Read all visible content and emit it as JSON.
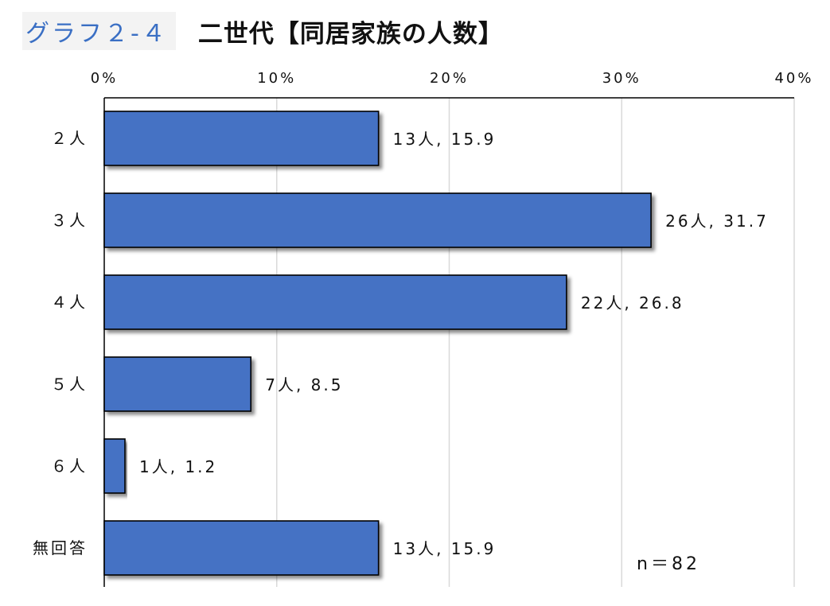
{
  "header": {
    "graph_number": "グラフ２-４",
    "title": "二世代【同居家族の人数】"
  },
  "chart_data": {
    "type": "bar",
    "orientation": "horizontal",
    "categories": [
      "２人",
      "３人",
      "４人",
      "５人",
      "６人",
      "無回答"
    ],
    "values": [
      15.9,
      31.7,
      26.8,
      8.5,
      1.2,
      15.9
    ],
    "counts": [
      13,
      26,
      22,
      7,
      1,
      13
    ],
    "data_labels": [
      "13人, 15.9",
      "26人, 31.7",
      "22人, 26.8",
      "7人, 8.5",
      "1人, 1.2",
      "13人, 15.9"
    ],
    "x_ticks": [
      "0%",
      "10%",
      "20%",
      "30%",
      "40%"
    ],
    "xlim": [
      0,
      40
    ],
    "xlabel": "",
    "ylabel": "",
    "grid": "vertical",
    "bar_color": "#4472c4",
    "annotation": "n＝82"
  }
}
